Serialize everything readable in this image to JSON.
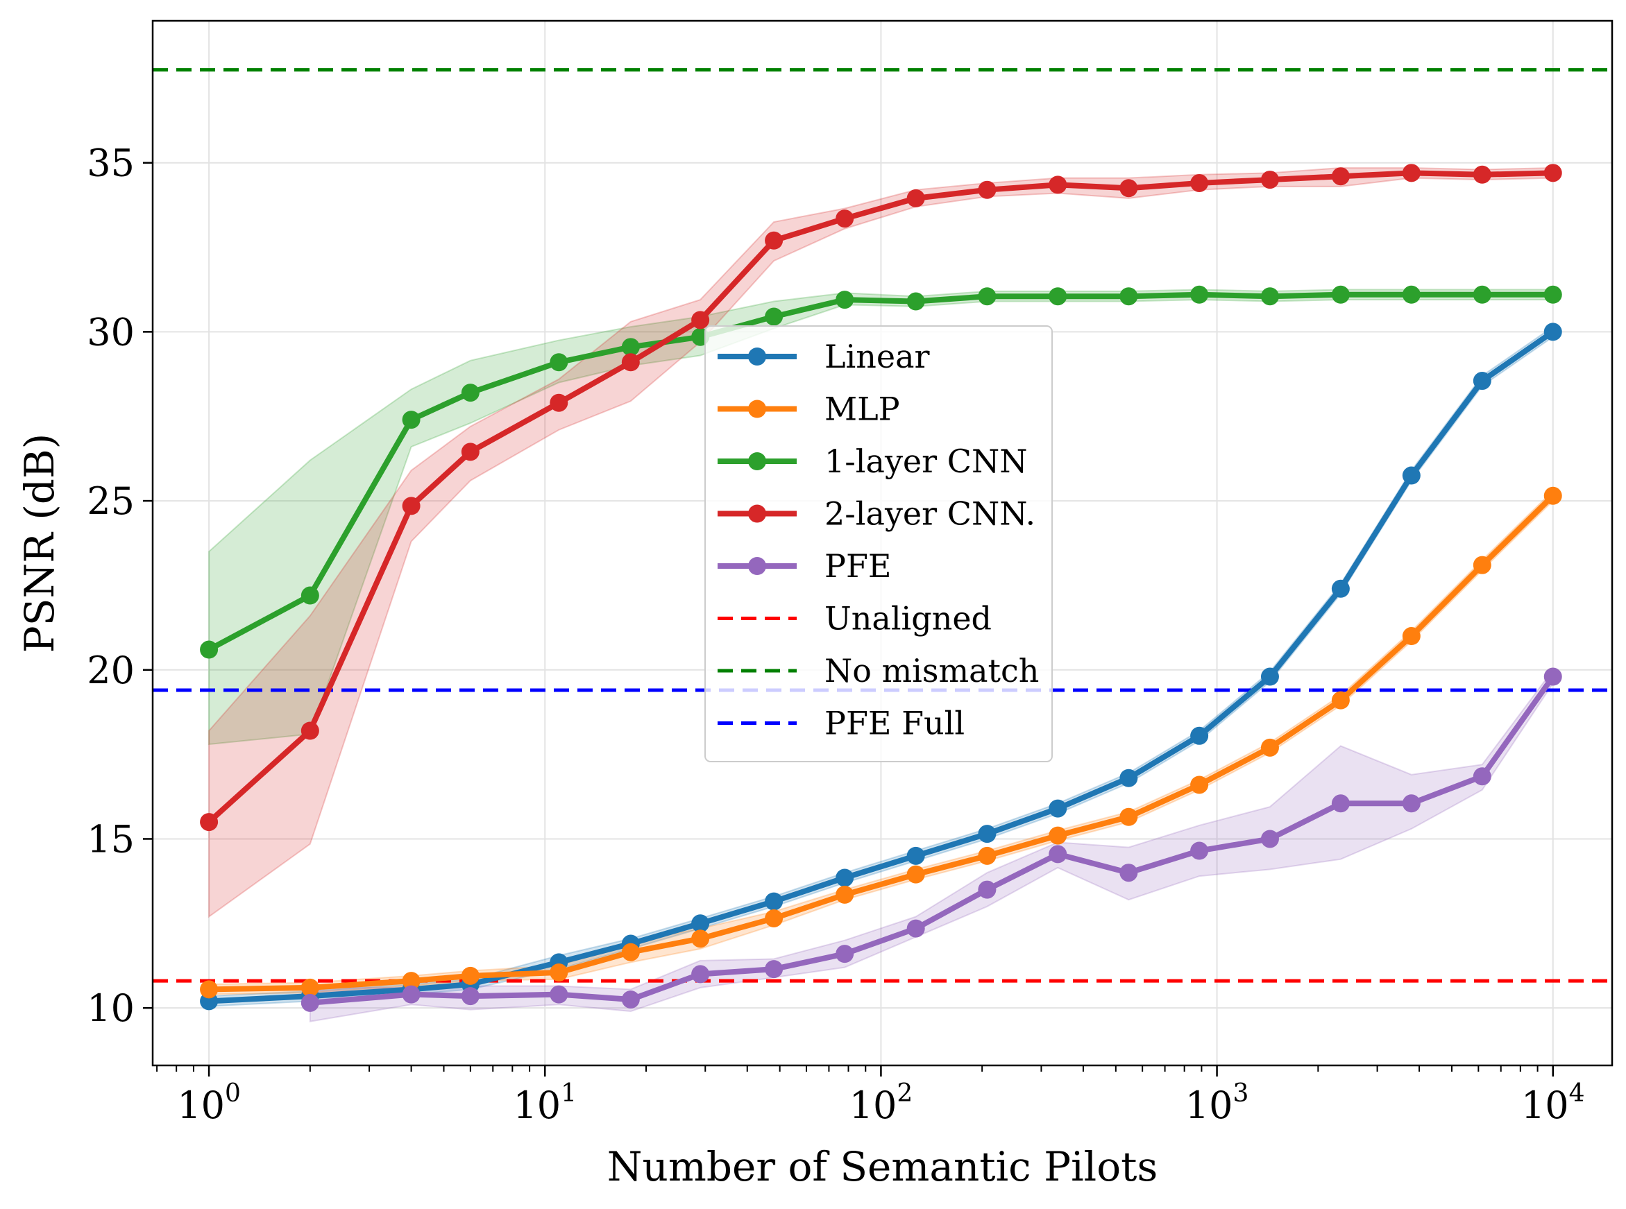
{
  "chart_data": {
    "type": "line",
    "xlabel": "Number of Semantic Pilots",
    "ylabel": "PSNR (dB)",
    "xscale": "log",
    "xlim": [
      0.68,
      15000
    ],
    "ylim": [
      8.3,
      39.2
    ],
    "grid": true,
    "legend_position": "center",
    "x_ticks": [
      {
        "value": 1,
        "base": "10",
        "exp": "0"
      },
      {
        "value": 10,
        "base": "10",
        "exp": "1"
      },
      {
        "value": 100,
        "base": "10",
        "exp": "2"
      },
      {
        "value": 1000,
        "base": "10",
        "exp": "3"
      },
      {
        "value": 10000,
        "base": "10",
        "exp": "4"
      }
    ],
    "y_ticks": [
      {
        "value": 10,
        "label": "10"
      },
      {
        "value": 15,
        "label": "15"
      },
      {
        "value": 20,
        "label": "20"
      },
      {
        "value": 25,
        "label": "25"
      },
      {
        "value": 30,
        "label": "30"
      },
      {
        "value": 35,
        "label": "35"
      }
    ],
    "series": [
      {
        "name": "Linear",
        "color": "#1f77b4",
        "x": [
          1,
          2,
          4,
          6,
          11,
          18,
          29,
          48,
          78,
          127,
          207,
          336,
          546,
          886,
          1438,
          2335,
          3792,
          6158,
          10000
        ],
        "y": [
          10.2,
          10.35,
          10.55,
          10.7,
          11.35,
          11.9,
          12.5,
          13.15,
          13.85,
          14.5,
          15.15,
          15.9,
          16.8,
          18.05,
          19.8,
          22.4,
          25.75,
          28.55,
          30.0
        ],
        "lower": [
          10.05,
          10.2,
          10.4,
          10.55,
          11.15,
          11.75,
          12.35,
          13.0,
          13.7,
          14.35,
          15.0,
          15.75,
          16.65,
          17.9,
          19.65,
          22.25,
          25.6,
          28.4,
          29.85
        ],
        "upper": [
          10.35,
          10.5,
          10.7,
          10.85,
          11.55,
          12.05,
          12.65,
          13.3,
          14.0,
          14.65,
          15.3,
          16.05,
          16.95,
          18.2,
          19.95,
          22.55,
          25.9,
          28.7,
          30.15
        ]
      },
      {
        "name": "MLP",
        "color": "#ff7f0e",
        "x": [
          1,
          2,
          4,
          6,
          11,
          18,
          29,
          48,
          78,
          127,
          207,
          336,
          546,
          886,
          1438,
          2335,
          3792,
          6158,
          10000
        ],
        "y": [
          10.55,
          10.6,
          10.8,
          10.95,
          11.05,
          11.65,
          12.05,
          12.65,
          13.35,
          13.95,
          14.5,
          15.1,
          15.65,
          16.6,
          17.7,
          19.1,
          21.0,
          23.1,
          25.15
        ],
        "lower": [
          10.4,
          10.45,
          10.65,
          10.8,
          10.85,
          11.35,
          11.75,
          12.45,
          13.2,
          13.8,
          14.35,
          14.95,
          15.5,
          16.45,
          17.55,
          18.95,
          20.85,
          22.95,
          25.0
        ],
        "upper": [
          10.7,
          10.75,
          10.95,
          11.1,
          11.25,
          11.95,
          12.35,
          12.85,
          13.5,
          14.1,
          14.65,
          15.25,
          15.8,
          16.75,
          17.85,
          19.25,
          21.15,
          23.25,
          25.3
        ]
      },
      {
        "name": "1-layer CNN",
        "color": "#2ca02c",
        "x": [
          1,
          2,
          4,
          6,
          11,
          18,
          29,
          48,
          78,
          127,
          207,
          336,
          546,
          886,
          1438,
          2335,
          3792,
          6158,
          10000
        ],
        "y": [
          20.6,
          22.2,
          27.4,
          28.2,
          29.1,
          29.55,
          29.85,
          30.45,
          30.95,
          30.9,
          31.05,
          31.05,
          31.05,
          31.1,
          31.05,
          31.1,
          31.1,
          31.1,
          31.1
        ],
        "lower": [
          17.8,
          18.1,
          26.6,
          27.3,
          28.5,
          29.0,
          29.3,
          30.1,
          30.8,
          30.75,
          30.9,
          30.9,
          30.9,
          30.95,
          30.9,
          30.95,
          30.95,
          30.95,
          30.95
        ],
        "upper": [
          23.5,
          26.2,
          28.3,
          29.15,
          29.75,
          30.15,
          30.45,
          30.9,
          31.15,
          31.05,
          31.2,
          31.2,
          31.2,
          31.25,
          31.2,
          31.25,
          31.25,
          31.25,
          31.25
        ]
      },
      {
        "name": "2-layer CNN.",
        "color": "#d62728",
        "x": [
          1,
          2,
          4,
          6,
          11,
          18,
          29,
          48,
          78,
          127,
          207,
          336,
          546,
          886,
          1438,
          2335,
          3792,
          6158,
          10000
        ],
        "y": [
          15.5,
          18.2,
          24.85,
          26.45,
          27.9,
          29.1,
          30.35,
          32.7,
          33.35,
          33.95,
          34.2,
          34.35,
          34.25,
          34.4,
          34.5,
          34.6,
          34.7,
          34.65,
          34.7
        ],
        "lower": [
          12.7,
          14.85,
          23.8,
          25.6,
          27.1,
          27.95,
          29.7,
          32.1,
          33.05,
          33.7,
          34.0,
          34.1,
          33.95,
          34.2,
          34.3,
          34.3,
          34.55,
          34.5,
          34.55
        ],
        "upper": [
          18.2,
          21.6,
          25.9,
          27.2,
          28.6,
          30.3,
          30.95,
          33.25,
          33.65,
          34.2,
          34.4,
          34.55,
          34.55,
          34.65,
          34.7,
          34.85,
          34.85,
          34.8,
          34.85
        ]
      },
      {
        "name": "PFE",
        "color": "#9467bd",
        "x": [
          2,
          4,
          6,
          11,
          18,
          29,
          48,
          78,
          127,
          207,
          336,
          546,
          886,
          1438,
          2335,
          3792,
          6158,
          10000
        ],
        "y": [
          10.15,
          10.4,
          10.35,
          10.4,
          10.25,
          11.0,
          11.15,
          11.6,
          12.35,
          13.5,
          14.55,
          14.0,
          14.65,
          15.0,
          16.05,
          16.05,
          16.85,
          19.8
        ],
        "lower": [
          9.6,
          10.1,
          9.95,
          10.1,
          9.9,
          10.6,
          10.9,
          11.2,
          12.1,
          13.0,
          14.15,
          13.2,
          13.9,
          14.1,
          14.4,
          15.3,
          16.45,
          19.6
        ],
        "upper": [
          10.6,
          10.6,
          10.65,
          10.65,
          10.55,
          11.4,
          11.45,
          12.0,
          12.7,
          14.0,
          14.9,
          14.75,
          15.4,
          15.95,
          17.75,
          16.9,
          17.2,
          20.0
        ]
      }
    ],
    "reference_lines": [
      {
        "name": "Unaligned",
        "value": 10.8,
        "color": "#ff0000"
      },
      {
        "name": "No mismatch",
        "value": 37.75,
        "color": "#008000"
      },
      {
        "name": "PFE Full",
        "value": 19.4,
        "color": "#0000ff"
      }
    ]
  }
}
